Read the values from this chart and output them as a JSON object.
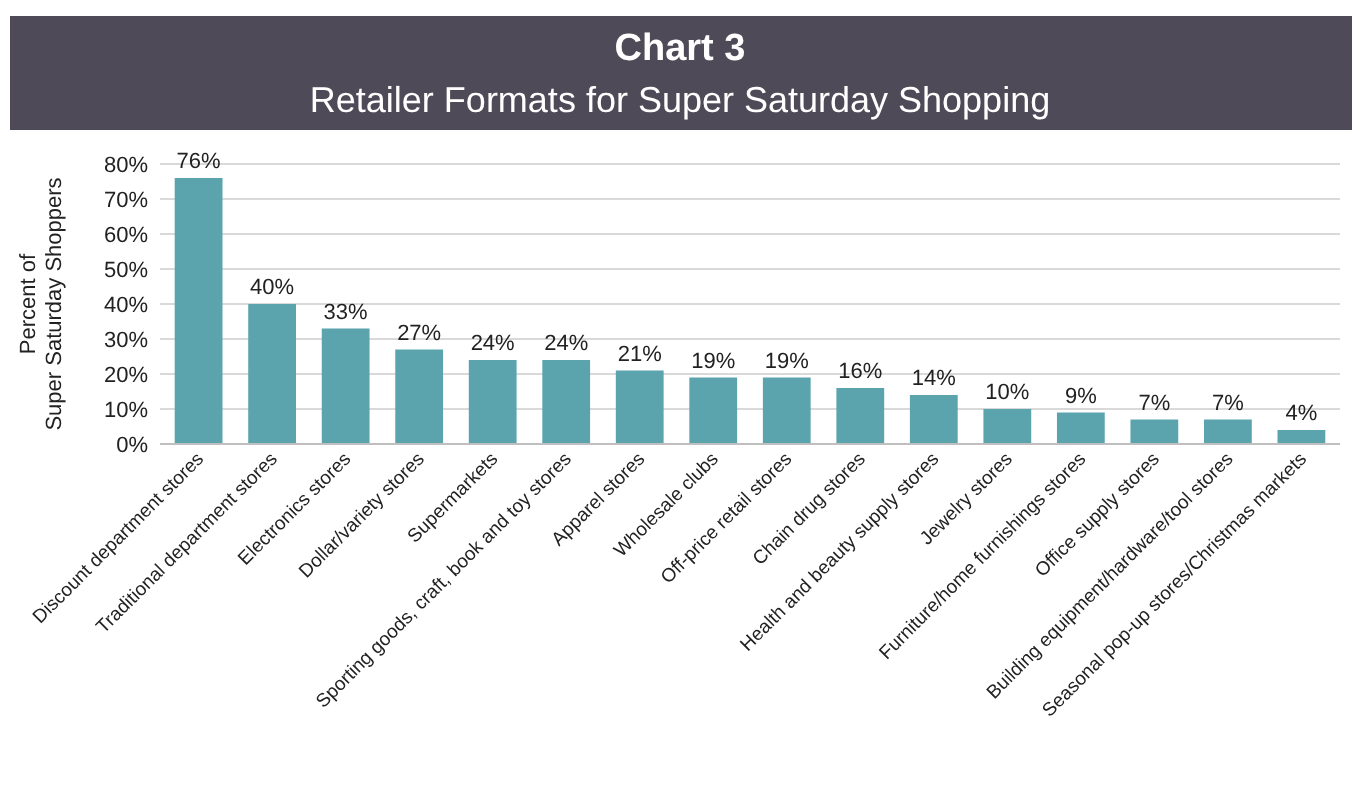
{
  "chart_data": {
    "type": "bar",
    "title": "Chart 3",
    "subtitle": "Retailer Formats for Super Saturday Shopping",
    "ylabel": "Percent of\nSuper Saturday Shoppers",
    "categories": [
      "Discount department stores",
      "Traditional department stores",
      "Electronics stores",
      "Dollar/variety stores",
      "Supermarkets",
      "Sporting goods, craft, book and toy stores",
      "Apparel stores",
      "Wholesale clubs",
      "Off-price retail stores",
      "Chain drug stores",
      "Health and beauty supply stores",
      "Jewelry stores",
      "Furniture/home furnishings stores",
      "Office supply stores",
      "Building equipment/hardware/tool stores",
      "Seasonal pop-up stores/Christmas markets"
    ],
    "values": [
      76,
      40,
      33,
      27,
      24,
      24,
      21,
      19,
      19,
      16,
      14,
      10,
      9,
      7,
      7,
      4
    ],
    "value_labels": [
      "76%",
      "40%",
      "33%",
      "27%",
      "24%",
      "24%",
      "21%",
      "19%",
      "19%",
      "16%",
      "14%",
      "10%",
      "9%",
      "7%",
      "7%",
      "4%"
    ],
    "color": "#5ba3ad",
    "ylim": [
      0,
      80
    ],
    "yticks": [
      {
        "value": 0,
        "label": "0%"
      },
      {
        "value": 10,
        "label": "10%"
      },
      {
        "value": 20,
        "label": "20%"
      },
      {
        "value": 30,
        "label": "30%"
      },
      {
        "value": 40,
        "label": "40%"
      },
      {
        "value": 50,
        "label": "50%"
      },
      {
        "value": 60,
        "label": "60%"
      },
      {
        "value": 70,
        "label": "70%"
      },
      {
        "value": 80,
        "label": "80%"
      }
    ],
    "grid": true
  }
}
